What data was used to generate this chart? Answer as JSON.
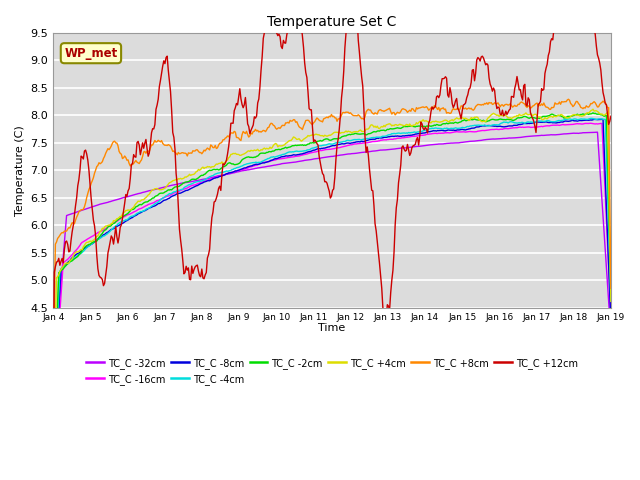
{
  "title": "Temperature Set C",
  "xlabel": "Time",
  "ylabel": "Temperature (C)",
  "ylim": [
    4.5,
    9.5
  ],
  "xlim": [
    0,
    15
  ],
  "x_tick_labels": [
    "Jan 4",
    "Jan 5",
    "Jan 6",
    "Jan 7",
    "Jan 8",
    "Jan 9",
    "Jan 10",
    "Jan 11",
    "Jan 12",
    "Jan 13",
    "Jan 14",
    "Jan 15",
    "Jan 16",
    "Jan 17",
    "Jan 18",
    "Jan 19"
  ],
  "bg_color": "#dcdcdc",
  "series": [
    {
      "label": "TC_C -32cm",
      "color": "#bb00ff"
    },
    {
      "label": "TC_C -16cm",
      "color": "#ff00ff"
    },
    {
      "label": "TC_C -8cm",
      "color": "#0000dd"
    },
    {
      "label": "TC_C -4cm",
      "color": "#00dddd"
    },
    {
      "label": "TC_C -2cm",
      "color": "#00dd00"
    },
    {
      "label": "TC_C +4cm",
      "color": "#dddd00"
    },
    {
      "label": "TC_C +8cm",
      "color": "#ff8800"
    },
    {
      "label": "TC_C +12cm",
      "color": "#cc0000"
    }
  ],
  "wp_met_color": "#aa0000",
  "wp_met_bg": "#ffffcc",
  "wp_met_border": "#888800",
  "yticks": [
    4.5,
    5.0,
    5.5,
    6.0,
    6.5,
    7.0,
    7.5,
    8.0,
    8.5,
    9.0,
    9.5
  ]
}
